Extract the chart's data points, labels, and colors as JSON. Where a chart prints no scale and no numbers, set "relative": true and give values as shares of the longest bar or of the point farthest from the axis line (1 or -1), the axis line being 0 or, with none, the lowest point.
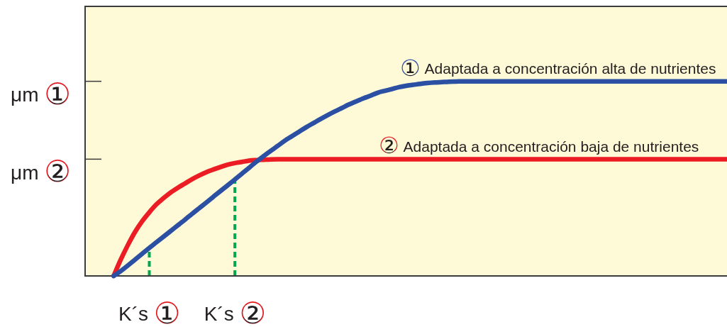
{
  "chart_data": {
    "type": "line",
    "relative": true,
    "categories": [
      null,
      null,
      null,
      null,
      null,
      null,
      null,
      null,
      null,
      "K´s ①",
      null,
      null,
      null,
      null,
      null,
      null,
      null,
      null,
      null,
      null,
      null,
      "K´s ②",
      null,
      null,
      null,
      null,
      null,
      null,
      null,
      null,
      null,
      null,
      null,
      null,
      null,
      null,
      null,
      null,
      null,
      null,
      null,
      null,
      null,
      null,
      null,
      null,
      null,
      null,
      null,
      null,
      null,
      null,
      null,
      null,
      null,
      null,
      null,
      null,
      null,
      null,
      null,
      null,
      null,
      null,
      null,
      null,
      null,
      null,
      null,
      null,
      null,
      null,
      null,
      null,
      null,
      null,
      null,
      null,
      null,
      null,
      null,
      null,
      null,
      null,
      null,
      null,
      null,
      null,
      null,
      null,
      null
    ],
    "series": [
      {
        "name": "① Adaptada a concentración alta de nutrientes",
        "color": "#2a4fa3",
        "values": [
          null,
          null,
          null,
          null,
          0,
          0.025,
          0.054,
          0.084,
          0.114,
          0.144,
          0.173,
          0.202,
          0.231,
          0.26,
          0.289,
          0.319,
          0.348,
          0.377,
          0.407,
          0.437,
          0.466,
          0.496,
          0.526,
          0.556,
          0.587,
          0.615,
          0.642,
          0.668,
          0.695,
          0.718,
          0.741,
          0.764,
          0.785,
          0.806,
          0.826,
          0.845,
          0.863,
          0.881,
          0.897,
          0.912,
          0.926,
          0.941,
          0.951,
          0.96,
          0.97,
          0.977,
          0.982,
          0.987,
          0.991,
          0.994,
          0.996,
          0.998,
          0.999,
          1,
          1,
          1,
          1,
          1,
          1,
          1,
          1,
          1,
          1,
          1,
          1,
          1,
          1,
          1,
          1,
          1,
          1,
          1,
          1,
          1,
          1,
          1,
          1,
          1,
          1,
          1,
          1,
          1,
          1,
          1,
          1,
          1,
          1,
          1,
          1,
          1,
          1
        ]
      },
      {
        "name": "② Adaptada a concentración baja de nutrientes",
        "color": "#ec1c24",
        "values": [
          null,
          null,
          null,
          null,
          0,
          0.084,
          0.159,
          0.226,
          0.281,
          0.327,
          0.368,
          0.4,
          0.429,
          0.453,
          0.475,
          0.497,
          0.516,
          0.533,
          0.547,
          0.56,
          0.572,
          0.58,
          0.586,
          0.592,
          0.595,
          0.597,
          0.599,
          0.6,
          0.6,
          0.6,
          0.6,
          0.6,
          0.6,
          0.6,
          0.6,
          0.6,
          0.6,
          0.6,
          0.6,
          0.6,
          0.6,
          0.6,
          0.6,
          0.6,
          0.6,
          0.6,
          0.6,
          0.6,
          0.6,
          0.6,
          0.6,
          0.6,
          0.6,
          0.6,
          0.6,
          0.6,
          0.6,
          0.6,
          0.6,
          0.6,
          0.6,
          0.6,
          0.6,
          0.6,
          0.6,
          0.6,
          0.6,
          0.6,
          0.6,
          0.6,
          0.6,
          0.6,
          0.6,
          0.6,
          0.6,
          0.6,
          0.6,
          0.6,
          0.6,
          0.6,
          0.6,
          0.6,
          0.6,
          0.6,
          0.6,
          0.6,
          0.6,
          0.6,
          0.6,
          0.6,
          0.6
        ]
      }
    ],
    "annotations": [
      "μm ①",
      "μm ②"
    ],
    "ref_lines": [
      {
        "axis": "x",
        "value": "K´s ①",
        "color": "#00a651",
        "line_style": "dashed"
      },
      {
        "axis": "x",
        "value": "K´s ②",
        "color": "#00a651",
        "line_style": "dashed"
      }
    ]
  }
}
